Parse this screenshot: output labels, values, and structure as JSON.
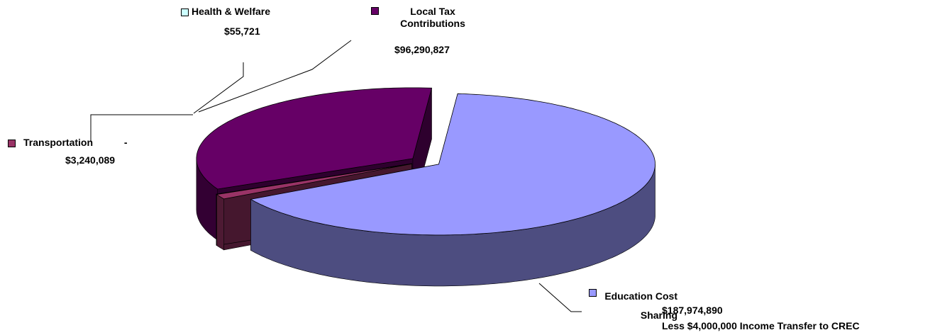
{
  "chart_data": {
    "type": "pie3d",
    "categories": [
      "Education Cost Sharing",
      "Transportation -",
      "Health & Welfare",
      "Local Tax Contributions"
    ],
    "values": [
      187974890,
      3240089,
      55721,
      96290827
    ],
    "value_labels": [
      "$187,974,890",
      "$3,240,089",
      "$55,721",
      "$96,290,827"
    ],
    "colors": [
      "#9999ff",
      "#993366",
      "#ccffff",
      "#660066"
    ],
    "annotation": "Less $4,000,000 Income Transfer to CREC"
  }
}
